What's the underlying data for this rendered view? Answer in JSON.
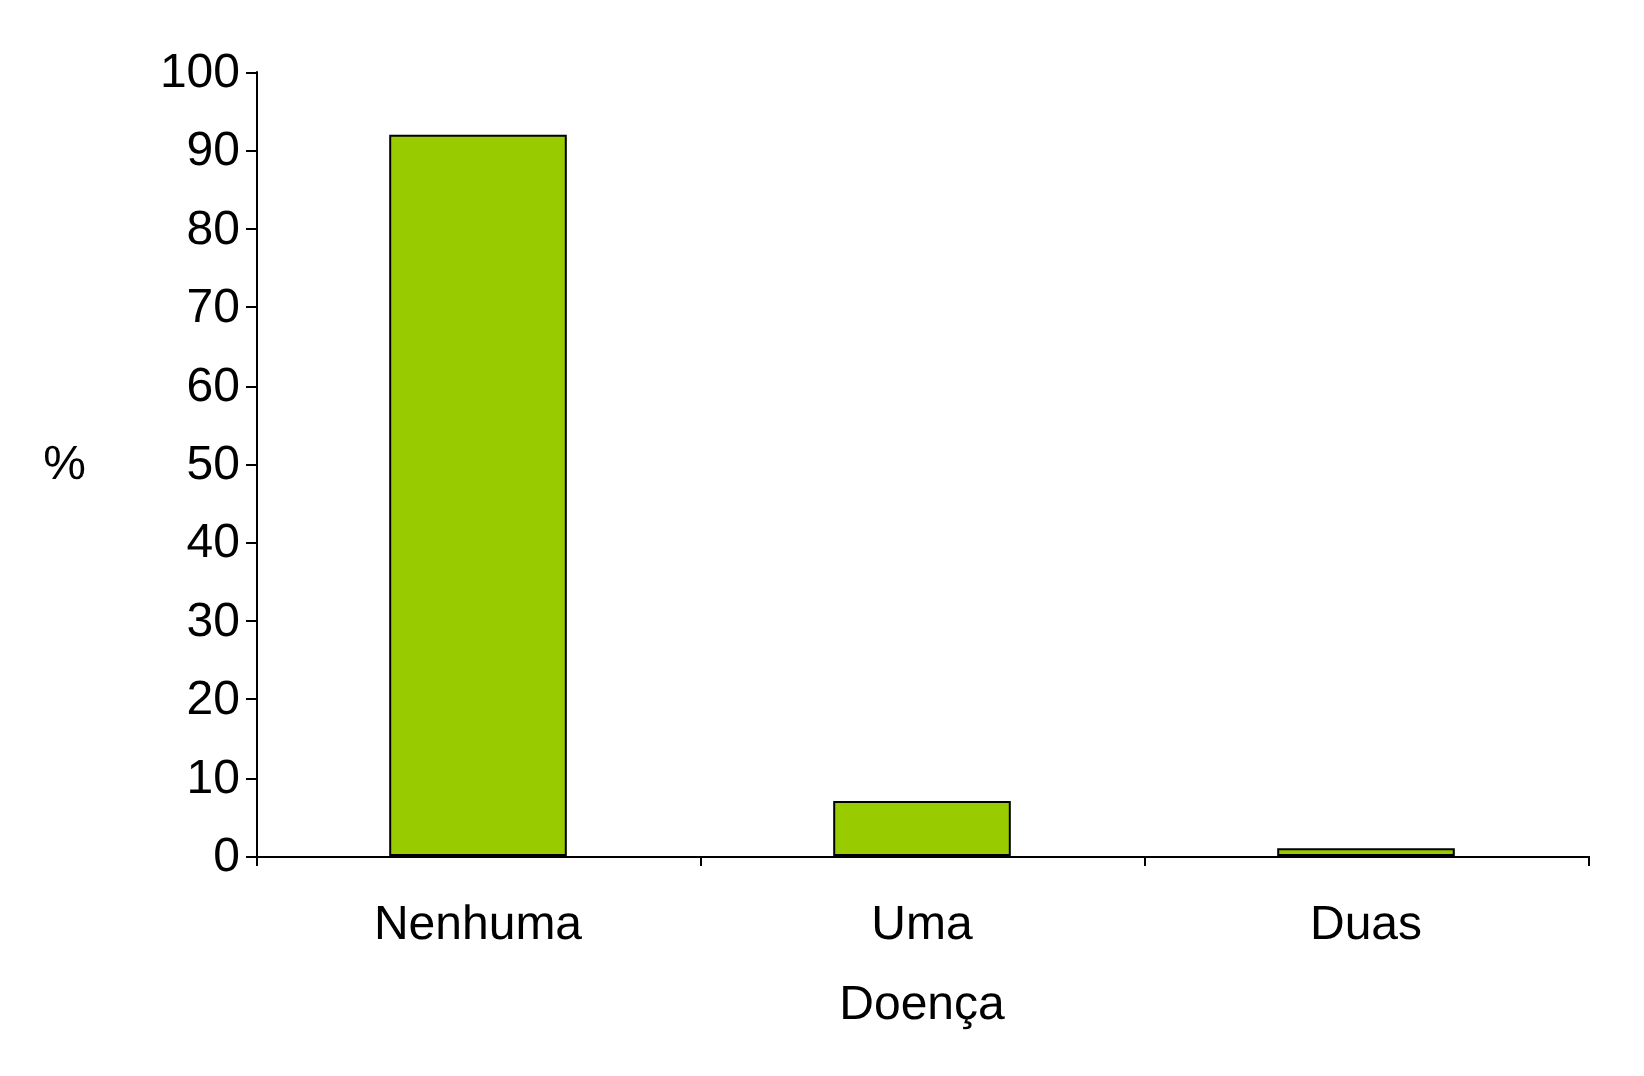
{
  "chart_data": {
    "type": "bar",
    "xlabel": "Doença",
    "ylabel": "%",
    "categories": [
      "Nenhuma",
      "Uma",
      "Duas"
    ],
    "values": [
      92,
      7,
      1
    ],
    "color": "#99cc00",
    "ylim": [
      0,
      100
    ],
    "yticks": [
      0,
      10,
      20,
      30,
      40,
      50,
      60,
      70,
      80,
      90,
      100
    ],
    "grid": false
  }
}
